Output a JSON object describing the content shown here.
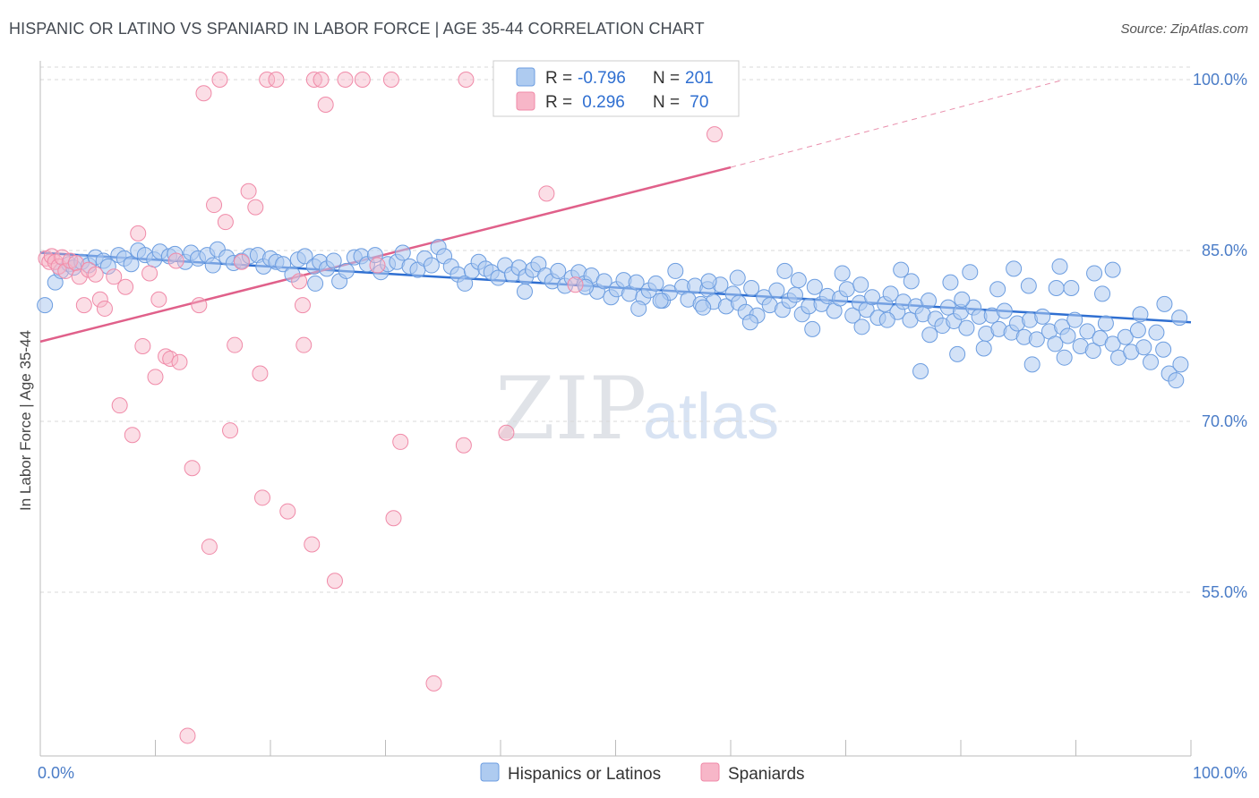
{
  "header": {
    "title": "HISPANIC OR LATINO VS SPANIARD IN LABOR FORCE | AGE 35-44 CORRELATION CHART",
    "source": "Source: ZipAtlas.com"
  },
  "watermark": {
    "zip": "ZIP",
    "atlas": "atlas"
  },
  "legend_box": {
    "rows": [
      {
        "r_label": "R =",
        "r_value": "-0.796",
        "n_label": "N =",
        "n_value": "201",
        "color": "#aecbf0"
      },
      {
        "r_label": "R =",
        "r_value": " 0.296",
        "n_label": "N =",
        "n_value": " 70",
        "color": "#f7b6c8"
      }
    ]
  },
  "bottom_legend": [
    {
      "label": "Hispanics or Latinos",
      "color": "#aecbf0"
    },
    {
      "label": "Spaniards",
      "color": "#f7b6c8"
    }
  ],
  "chart_data": {
    "type": "scatter",
    "title": "HISPANIC OR LATINO VS SPANIARD IN LABOR FORCE | AGE 35-44 CORRELATION CHART",
    "xlabel": "",
    "ylabel": "In Labor Force | Age 35-44",
    "xlim": [
      0,
      100
    ],
    "ylim": [
      40,
      100
    ],
    "x_tick_labels": [
      "0.0%",
      "100.0%"
    ],
    "y_ticks": [
      55,
      70,
      85,
      100
    ],
    "y_tick_labels": [
      "55.0%",
      "70.0%",
      "85.0%",
      "100.0%"
    ],
    "grid": true,
    "legend_position": "top-center",
    "colors": {
      "blue": "#6c9de0",
      "blue_fill": "#aecbf0",
      "pink": "#f08aa8",
      "pink_fill": "#f7b6c8",
      "blue_line": "#2f6fd1",
      "pink_line": "#e0608a"
    },
    "series": [
      {
        "name": "Hispanics or Latinos",
        "r": -0.796,
        "n": 201,
        "trend": {
          "x": [
            0,
            100
          ],
          "y": [
            84.8,
            78.7
          ]
        },
        "points": [
          [
            0.4,
            80.2
          ],
          [
            1.3,
            82.2
          ],
          [
            1.8,
            83.2
          ],
          [
            2.5,
            83.8
          ],
          [
            2.9,
            83.5
          ],
          [
            3.6,
            84.0
          ],
          [
            4.2,
            83.7
          ],
          [
            4.8,
            84.4
          ],
          [
            5.5,
            84.1
          ],
          [
            5.9,
            83.6
          ],
          [
            6.8,
            84.6
          ],
          [
            7.3,
            84.3
          ],
          [
            7.9,
            83.8
          ],
          [
            8.5,
            85.0
          ],
          [
            9.1,
            84.6
          ],
          [
            9.9,
            84.2
          ],
          [
            10.4,
            84.9
          ],
          [
            11.2,
            84.5
          ],
          [
            11.7,
            84.7
          ],
          [
            12.6,
            84.0
          ],
          [
            13.1,
            84.8
          ],
          [
            13.7,
            84.3
          ],
          [
            14.5,
            84.6
          ],
          [
            15.0,
            83.7
          ],
          [
            15.4,
            85.1
          ],
          [
            16.2,
            84.4
          ],
          [
            16.8,
            83.9
          ],
          [
            17.5,
            84.1
          ],
          [
            18.2,
            84.5
          ],
          [
            18.9,
            84.6
          ],
          [
            19.4,
            83.6
          ],
          [
            20.0,
            84.3
          ],
          [
            20.5,
            84.0
          ],
          [
            21.1,
            83.8
          ],
          [
            21.9,
            82.9
          ],
          [
            22.4,
            84.2
          ],
          [
            23.0,
            84.5
          ],
          [
            23.8,
            83.6
          ],
          [
            24.3,
            84.0
          ],
          [
            24.9,
            83.4
          ],
          [
            25.5,
            84.1
          ],
          [
            26.0,
            82.3
          ],
          [
            26.6,
            83.2
          ],
          [
            27.3,
            84.4
          ],
          [
            27.9,
            84.5
          ],
          [
            28.4,
            83.8
          ],
          [
            29.1,
            84.6
          ],
          [
            29.6,
            83.1
          ],
          [
            30.2,
            83.8
          ],
          [
            31.0,
            84.0
          ],
          [
            31.5,
            84.8
          ],
          [
            32.1,
            83.6
          ],
          [
            32.8,
            83.3
          ],
          [
            33.4,
            84.3
          ],
          [
            34.0,
            83.7
          ],
          [
            34.6,
            85.3
          ],
          [
            35.1,
            84.5
          ],
          [
            35.7,
            83.6
          ],
          [
            36.3,
            82.9
          ],
          [
            36.9,
            82.1
          ],
          [
            37.5,
            83.2
          ],
          [
            38.1,
            84.0
          ],
          [
            38.7,
            83.4
          ],
          [
            39.2,
            83.1
          ],
          [
            39.8,
            82.6
          ],
          [
            40.4,
            83.7
          ],
          [
            41.0,
            82.9
          ],
          [
            41.6,
            83.5
          ],
          [
            42.2,
            82.7
          ],
          [
            42.8,
            83.3
          ],
          [
            43.3,
            83.8
          ],
          [
            43.9,
            82.8
          ],
          [
            44.5,
            82.3
          ],
          [
            45.0,
            83.2
          ],
          [
            45.6,
            81.9
          ],
          [
            46.2,
            82.6
          ],
          [
            46.8,
            83.1
          ],
          [
            47.3,
            82.1
          ],
          [
            47.9,
            82.8
          ],
          [
            48.4,
            81.4
          ],
          [
            49.0,
            82.3
          ],
          [
            49.6,
            80.9
          ],
          [
            50.1,
            81.6
          ],
          [
            50.7,
            82.4
          ],
          [
            51.2,
            81.2
          ],
          [
            51.8,
            82.2
          ],
          [
            52.4,
            80.9
          ],
          [
            52.9,
            81.5
          ],
          [
            53.5,
            82.1
          ],
          [
            54.1,
            80.6
          ],
          [
            54.7,
            81.3
          ],
          [
            55.2,
            83.2
          ],
          [
            55.8,
            81.8
          ],
          [
            56.3,
            80.7
          ],
          [
            56.9,
            81.9
          ],
          [
            57.4,
            80.3
          ],
          [
            58.0,
            81.6
          ],
          [
            58.5,
            80.5
          ],
          [
            59.1,
            82.0
          ],
          [
            59.6,
            80.1
          ],
          [
            60.2,
            81.2
          ],
          [
            60.7,
            80.4
          ],
          [
            61.3,
            79.6
          ],
          [
            61.8,
            81.7
          ],
          [
            62.3,
            79.3
          ],
          [
            62.9,
            80.9
          ],
          [
            63.4,
            80.2
          ],
          [
            64.0,
            81.5
          ],
          [
            64.5,
            79.8
          ],
          [
            65.1,
            80.6
          ],
          [
            65.6,
            81.1
          ],
          [
            66.2,
            79.4
          ],
          [
            66.8,
            80.1
          ],
          [
            67.3,
            81.8
          ],
          [
            67.9,
            80.3
          ],
          [
            68.4,
            81.0
          ],
          [
            69.0,
            79.7
          ],
          [
            69.5,
            80.8
          ],
          [
            70.1,
            81.6
          ],
          [
            70.6,
            79.3
          ],
          [
            71.2,
            80.4
          ],
          [
            71.8,
            79.8
          ],
          [
            72.3,
            80.9
          ],
          [
            72.8,
            79.1
          ],
          [
            73.4,
            80.3
          ],
          [
            73.9,
            81.2
          ],
          [
            74.5,
            79.6
          ],
          [
            75.0,
            80.5
          ],
          [
            75.6,
            78.9
          ],
          [
            76.1,
            80.1
          ],
          [
            76.7,
            79.4
          ],
          [
            77.2,
            80.6
          ],
          [
            77.8,
            79.0
          ],
          [
            78.4,
            78.4
          ],
          [
            78.9,
            80.0
          ],
          [
            79.4,
            78.8
          ],
          [
            80.0,
            79.6
          ],
          [
            80.5,
            78.2
          ],
          [
            81.1,
            80.0
          ],
          [
            81.6,
            79.2
          ],
          [
            82.2,
            77.7
          ],
          [
            82.7,
            79.3
          ],
          [
            83.3,
            78.1
          ],
          [
            83.8,
            79.7
          ],
          [
            84.4,
            77.8
          ],
          [
            84.9,
            78.6
          ],
          [
            85.5,
            77.4
          ],
          [
            86.0,
            78.9
          ],
          [
            86.6,
            77.2
          ],
          [
            87.1,
            79.2
          ],
          [
            87.7,
            77.9
          ],
          [
            88.2,
            76.8
          ],
          [
            88.8,
            78.3
          ],
          [
            89.3,
            77.5
          ],
          [
            89.9,
            78.9
          ],
          [
            90.4,
            76.6
          ],
          [
            91.0,
            77.9
          ],
          [
            91.5,
            76.2
          ],
          [
            92.1,
            77.3
          ],
          [
            92.6,
            78.6
          ],
          [
            93.2,
            76.8
          ],
          [
            93.7,
            75.6
          ],
          [
            94.3,
            77.4
          ],
          [
            94.8,
            76.1
          ],
          [
            95.4,
            78.0
          ],
          [
            95.9,
            76.5
          ],
          [
            96.5,
            75.2
          ],
          [
            97.0,
            77.8
          ],
          [
            97.6,
            76.3
          ],
          [
            98.1,
            74.2
          ],
          [
            98.7,
            73.6
          ],
          [
            99.1,
            75.0
          ],
          [
            64.7,
            83.2
          ],
          [
            69.7,
            83.0
          ],
          [
            74.8,
            83.3
          ],
          [
            80.8,
            83.1
          ],
          [
            84.6,
            83.4
          ],
          [
            88.6,
            83.6
          ],
          [
            91.6,
            83.0
          ],
          [
            93.2,
            83.3
          ],
          [
            58.1,
            82.3
          ],
          [
            60.6,
            82.6
          ],
          [
            65.9,
            82.4
          ],
          [
            71.3,
            82.0
          ],
          [
            75.7,
            82.3
          ],
          [
            79.1,
            82.2
          ],
          [
            83.2,
            81.6
          ],
          [
            85.9,
            81.9
          ],
          [
            89.6,
            81.7
          ],
          [
            92.3,
            81.2
          ],
          [
            76.5,
            74.4
          ],
          [
            79.7,
            75.9
          ],
          [
            82.0,
            76.4
          ],
          [
            86.2,
            75.0
          ],
          [
            89.0,
            75.6
          ],
          [
            23.9,
            82.1
          ],
          [
            47.4,
            81.8
          ],
          [
            52.0,
            79.9
          ],
          [
            57.6,
            80.0
          ],
          [
            61.7,
            78.7
          ],
          [
            67.1,
            78.1
          ],
          [
            71.4,
            78.3
          ],
          [
            73.6,
            78.9
          ],
          [
            77.3,
            77.6
          ],
          [
            80.1,
            80.7
          ],
          [
            95.6,
            79.4
          ],
          [
            97.7,
            80.3
          ],
          [
            99.0,
            79.1
          ],
          [
            42.1,
            81.4
          ],
          [
            53.9,
            80.6
          ],
          [
            88.3,
            81.7
          ]
        ]
      },
      {
        "name": "Spaniards",
        "r": 0.296,
        "n": 70,
        "trend": {
          "x": [
            0,
            60
          ],
          "y": [
            77.0,
            92.3
          ]
        },
        "trend_extension": {
          "x": [
            60,
            89
          ],
          "y": [
            92.3,
            100.0
          ]
        },
        "points": [
          [
            0.5,
            84.3
          ],
          [
            0.8,
            84.0
          ],
          [
            1.0,
            84.5
          ],
          [
            1.3,
            84.0
          ],
          [
            1.6,
            83.6
          ],
          [
            1.9,
            84.4
          ],
          [
            2.2,
            83.2
          ],
          [
            2.6,
            84.1
          ],
          [
            3.1,
            83.9
          ],
          [
            3.4,
            82.7
          ],
          [
            3.8,
            80.2
          ],
          [
            4.2,
            83.3
          ],
          [
            4.8,
            82.9
          ],
          [
            5.2,
            80.7
          ],
          [
            5.6,
            79.9
          ],
          [
            6.4,
            82.7
          ],
          [
            6.9,
            71.4
          ],
          [
            7.4,
            81.8
          ],
          [
            8.0,
            68.8
          ],
          [
            8.5,
            86.5
          ],
          [
            8.9,
            76.6
          ],
          [
            9.5,
            83.0
          ],
          [
            10.0,
            73.9
          ],
          [
            10.3,
            80.7
          ],
          [
            10.9,
            75.7
          ],
          [
            11.3,
            75.5
          ],
          [
            11.8,
            84.1
          ],
          [
            12.1,
            75.2
          ],
          [
            12.8,
            42.4
          ],
          [
            13.2,
            65.9
          ],
          [
            13.8,
            80.2
          ],
          [
            14.2,
            98.8
          ],
          [
            14.7,
            59.0
          ],
          [
            15.1,
            89.0
          ],
          [
            15.6,
            100.0
          ],
          [
            16.1,
            87.5
          ],
          [
            16.5,
            69.2
          ],
          [
            16.9,
            76.7
          ],
          [
            17.5,
            84.0
          ],
          [
            18.1,
            90.2
          ],
          [
            18.7,
            88.8
          ],
          [
            19.1,
            74.2
          ],
          [
            19.3,
            63.3
          ],
          [
            19.7,
            100.0
          ],
          [
            20.5,
            100.0
          ],
          [
            21.5,
            62.1
          ],
          [
            22.5,
            82.3
          ],
          [
            22.8,
            80.2
          ],
          [
            22.9,
            76.7
          ],
          [
            23.6,
            59.2
          ],
          [
            23.8,
            100.0
          ],
          [
            24.4,
            100.0
          ],
          [
            24.8,
            97.8
          ],
          [
            25.6,
            56.0
          ],
          [
            26.5,
            100.0
          ],
          [
            28.0,
            100.0
          ],
          [
            29.3,
            83.7
          ],
          [
            30.5,
            100.0
          ],
          [
            30.7,
            61.5
          ],
          [
            31.3,
            68.2
          ],
          [
            34.2,
            47.0
          ],
          [
            36.8,
            67.9
          ],
          [
            37.0,
            100.0
          ],
          [
            40.5,
            69.0
          ],
          [
            44.0,
            90.0
          ],
          [
            47.8,
            100.0
          ],
          [
            51.2,
            100.0
          ],
          [
            56.0,
            100.0
          ],
          [
            58.6,
            95.2
          ],
          [
            46.5,
            82.0
          ]
        ]
      }
    ]
  }
}
